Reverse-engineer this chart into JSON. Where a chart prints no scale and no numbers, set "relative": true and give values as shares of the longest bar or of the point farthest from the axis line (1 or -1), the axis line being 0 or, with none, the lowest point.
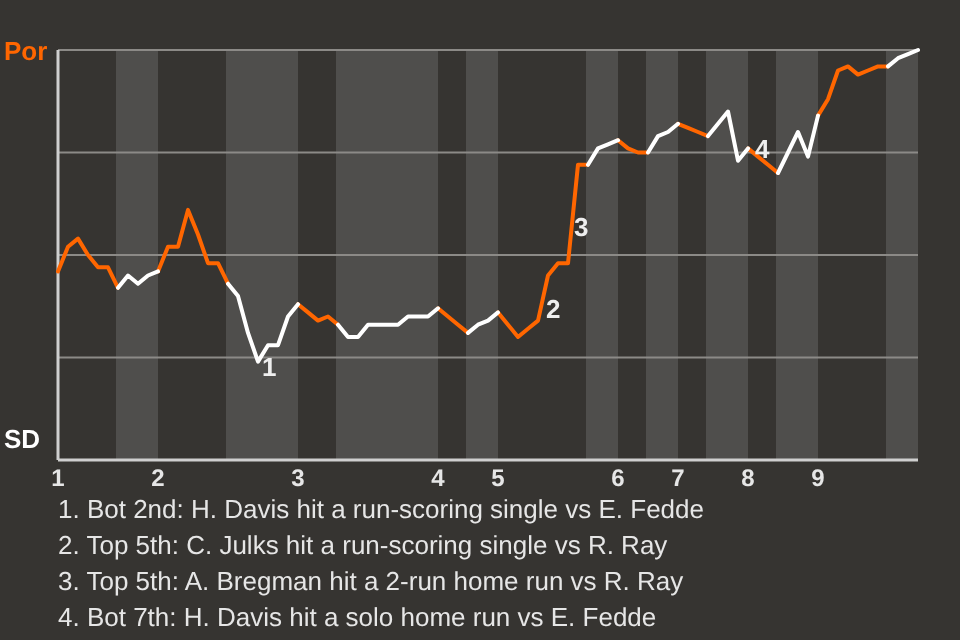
{
  "chart_data": {
    "type": "line",
    "relative": true,
    "categories": [
      "1",
      null,
      null,
      null,
      null,
      null,
      null,
      null,
      null,
      null,
      "2",
      null,
      null,
      null,
      null,
      null,
      null,
      null,
      null,
      null,
      null,
      null,
      null,
      null,
      "3",
      null,
      null,
      null,
      null,
      null,
      null,
      null,
      null,
      null,
      null,
      null,
      null,
      null,
      "4",
      null,
      null,
      null,
      null,
      null,
      "5",
      null,
      null,
      null,
      null,
      null,
      null,
      null,
      null,
      null,
      null,
      null,
      "6",
      null,
      null,
      null,
      null,
      null,
      "7",
      null,
      null,
      null,
      null,
      null,
      null,
      "8",
      null,
      null,
      null,
      null,
      null,
      null,
      "9",
      null,
      null,
      null,
      null,
      null,
      null,
      null,
      null,
      null,
      null
    ],
    "grid": "y",
    "legend": "left",
    "marker": "none",
    "line_style": "solid",
    "series": [
      {
        "name": "Por",
        "color": "#ff6600",
        "values": [
          0.46,
          0.52,
          0.54,
          0.5,
          0.47,
          0.47,
          0.42,
          null,
          null,
          null,
          0.46,
          0.52,
          0.52,
          0.61,
          0.55,
          0.48,
          0.48,
          0.43,
          null,
          null,
          null,
          null,
          null,
          null,
          0.38,
          0.36,
          0.34,
          0.35,
          0.33,
          null,
          null,
          null,
          null,
          null,
          null,
          null,
          null,
          null,
          0.37,
          0.35,
          0.33,
          0.31,
          null,
          null,
          0.36,
          0.33,
          0.3,
          0.32,
          0.34,
          0.45,
          0.48,
          0.48,
          0.72,
          0.72,
          null,
          null,
          0.78,
          0.76,
          0.75,
          0.75,
          null,
          null,
          0.82,
          0.81,
          0.8,
          0.79,
          null,
          null,
          null,
          0.76,
          0.74,
          0.72,
          0.7,
          null,
          null,
          null,
          0.84,
          0.88,
          0.95,
          0.96,
          0.94,
          0.95,
          0.96,
          0.96,
          null,
          null,
          null
        ]
      },
      {
        "name": "SD",
        "color": "#ffffff",
        "values": [
          null,
          null,
          null,
          null,
          null,
          null,
          0.42,
          0.45,
          0.43,
          0.45,
          0.46,
          null,
          null,
          null,
          null,
          null,
          null,
          0.43,
          0.4,
          0.31,
          0.24,
          0.28,
          0.28,
          0.35,
          0.38,
          null,
          null,
          null,
          0.33,
          0.3,
          0.3,
          0.33,
          0.33,
          0.33,
          0.33,
          0.35,
          0.35,
          0.35,
          0.37,
          null,
          null,
          0.31,
          0.33,
          0.34,
          0.36,
          null,
          null,
          null,
          null,
          null,
          null,
          null,
          null,
          0.72,
          0.76,
          0.77,
          0.78,
          null,
          null,
          0.75,
          0.79,
          0.8,
          0.82,
          null,
          null,
          0.79,
          0.82,
          0.85,
          0.73,
          0.76,
          null,
          null,
          0.7,
          0.75,
          0.8,
          0.74,
          0.84,
          null,
          null,
          null,
          null,
          null,
          null,
          0.96,
          0.98,
          0.99,
          1
        ]
      }
    ],
    "annotations": [
      "1",
      "2",
      "3",
      "4",
      "1. Bot 2nd: H. Davis hit a run-scoring single vs E. Fedde",
      "2. Top 5th: C. Julks hit a run-scoring single vs R. Ray",
      "3. Top 5th: A. Bregman hit a 2-run home run vs R. Ray",
      "4. Bot 7th: H. Davis hit a solo home run vs E. Fedde"
    ]
  }
}
